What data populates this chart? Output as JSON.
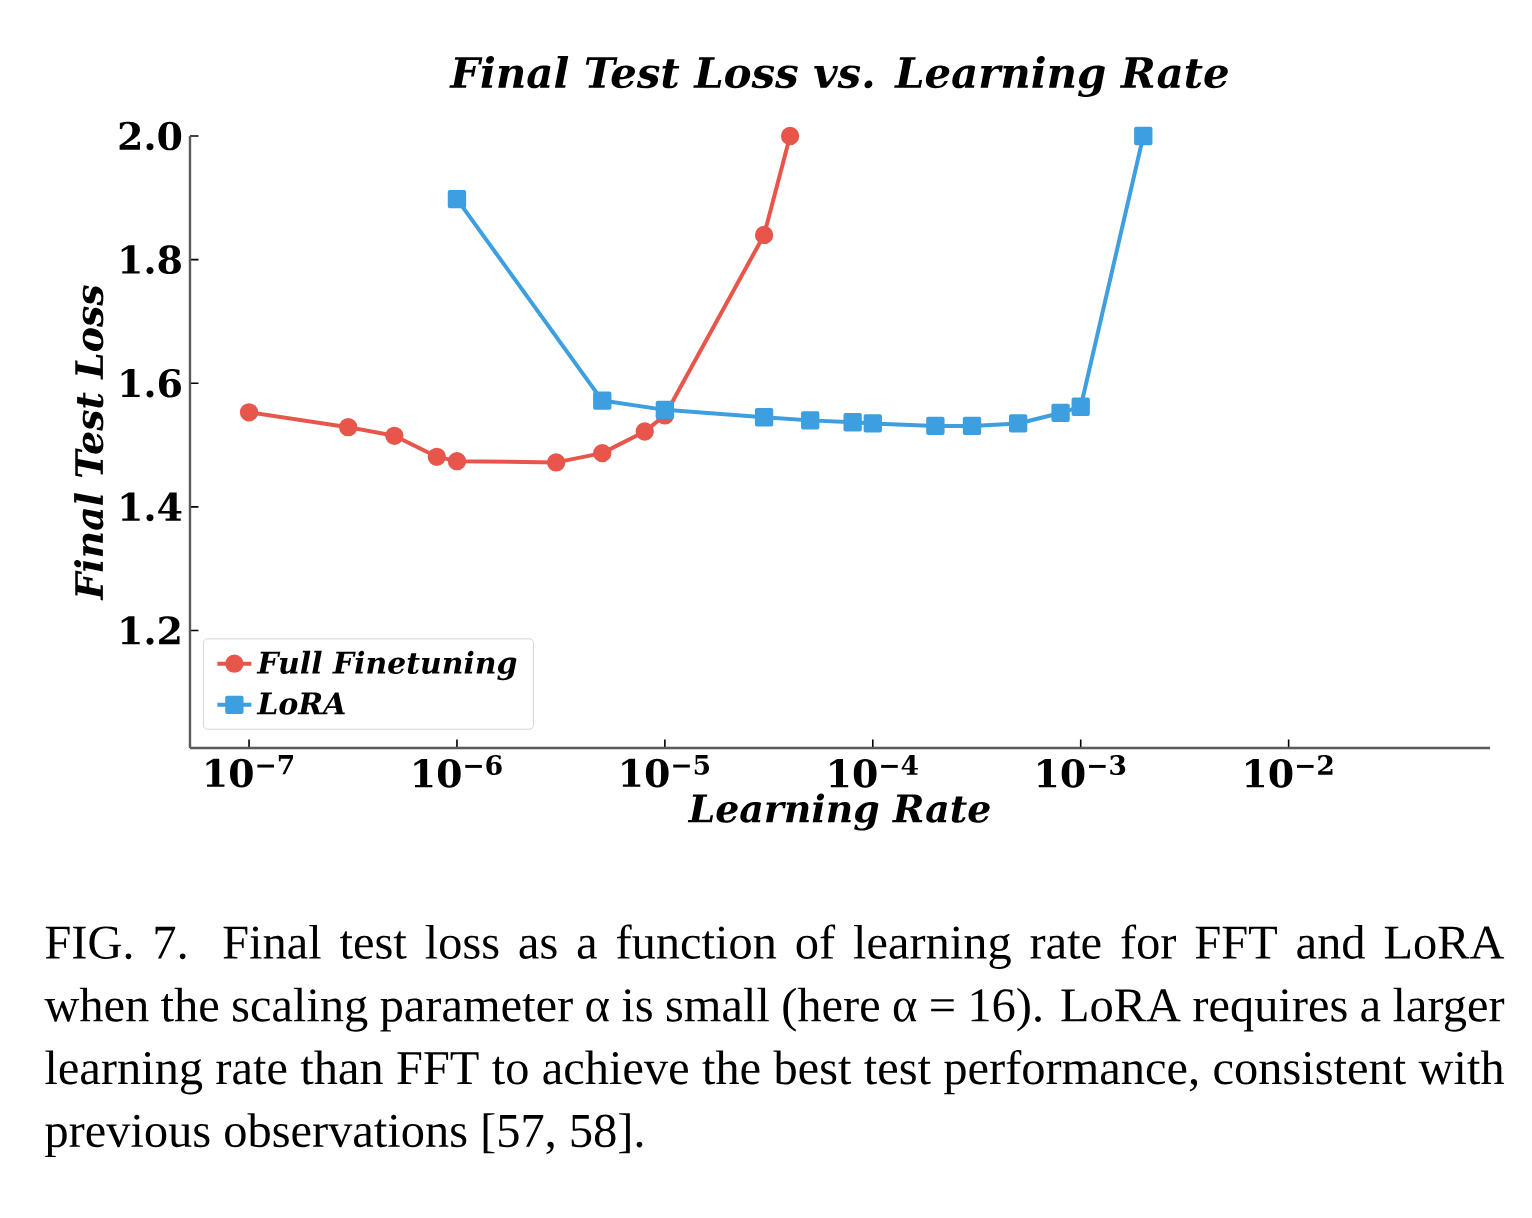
{
  "chart_data": {
    "type": "line",
    "title": "Final Test Loss vs. Learning Rate",
    "xlabel": "Learning Rate",
    "ylabel": "Final Test Loss",
    "log": "x",
    "xlim": [
      5.2e-08,
      0.093
    ],
    "ylim": [
      1.01,
      2.0
    ],
    "xticks": [
      {
        "value": 1e-07,
        "label": "10$^{−7}$"
      },
      {
        "value": 1e-06,
        "label": "10$^{−6}$"
      },
      {
        "value": 1e-05,
        "label": "10$^{−5}$"
      },
      {
        "value": 0.0001,
        "label": "10$^{−4}$"
      },
      {
        "value": 0.001,
        "label": "10$^{−3}$"
      },
      {
        "value": 0.01,
        "label": "10$^{−2}$"
      }
    ],
    "yticks": [
      1.2,
      1.4,
      1.6,
      1.8,
      {
        "value": 2.0,
        "label": "2.0"
      }
    ],
    "legend": "bottom left",
    "grid": false,
    "line_style": "solid",
    "series": [
      {
        "name": "Full Finetuning",
        "color": "#e8554a",
        "marker": "circle",
        "x": [
          1e-07,
          3e-07,
          5e-07,
          8e-07,
          1e-06,
          3e-06,
          5e-06,
          8e-06,
          1e-05,
          3e-05,
          4e-05
        ],
        "values": [
          1.553,
          1.529,
          1.515,
          1.481,
          1.474,
          1.472,
          1.487,
          1.522,
          1.548,
          1.84,
          2.0
        ]
      },
      {
        "name": "LoRA",
        "color": "#3d9fe0",
        "marker": "square",
        "x": [
          1e-06,
          5e-06,
          1e-05,
          3e-05,
          5e-05,
          8e-05,
          0.0001,
          0.0002,
          0.0003,
          0.0005,
          0.0008,
          0.001,
          0.002
        ],
        "values": [
          1.898,
          1.572,
          1.557,
          1.545,
          1.54,
          1.537,
          1.535,
          1.531,
          1.531,
          1.535,
          1.552,
          1.562,
          2.0
        ]
      }
    ],
    "annotations": [
      "FIG. 7.  Final test loss as a function of learning rate for FFT and LoRA when the scaling parameter α is small (here α = 16). LoRA requires a larger learning rate than FFT to achieve the best test performance, consistent with previous observations [57, 58]."
    ]
  }
}
